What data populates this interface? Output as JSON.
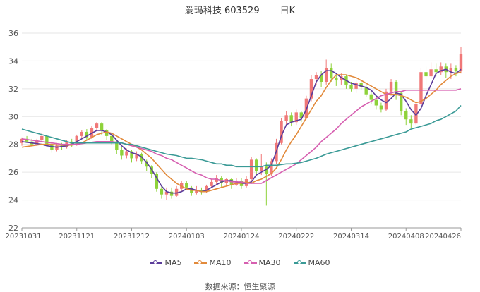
{
  "header": {
    "stock_name": "爱玛科技 603529",
    "period": "日K"
  },
  "source": "数据来源：恒生聚源",
  "chart_data": {
    "type": "candlestick",
    "title": "爱玛科技 603529",
    "period": "日K",
    "ylim": [
      22,
      36
    ],
    "y_ticks": [
      "22",
      "24",
      "26",
      "28",
      "30",
      "32",
      "34",
      "36"
    ],
    "x_ticks": [
      "20231031",
      "20231121",
      "20231212",
      "20240103",
      "20240124",
      "20240222",
      "20240314",
      "20240408",
      "20240426"
    ],
    "grid": true,
    "legend_position": "bottom",
    "colors": {
      "up": "#f07878",
      "down": "#8ed23a",
      "MA5": "#5b3c9a",
      "MA10": "#e28a3b",
      "MA30": "#d65fb0",
      "MA60": "#3a9a96"
    },
    "series": [
      {
        "name": "MA5",
        "values": [
          28.2,
          28.15,
          28.1,
          28.05,
          28.0,
          27.9,
          27.85,
          27.8,
          27.85,
          27.9,
          28.0,
          28.2,
          28.4,
          28.6,
          28.8,
          29.0,
          29.0,
          28.9,
          28.7,
          28.3,
          27.9,
          27.6,
          27.4,
          27.3,
          27.1,
          26.7,
          26.2,
          25.6,
          25.0,
          24.6,
          24.5,
          24.5,
          24.6,
          24.8,
          24.8,
          24.7,
          24.6,
          24.7,
          24.9,
          25.1,
          25.3,
          25.4,
          25.4,
          25.3,
          25.2,
          25.2,
          25.3,
          25.8,
          26.0,
          26.2,
          26.5,
          27.5,
          28.6,
          29.4,
          29.6,
          29.7,
          29.8,
          30.5,
          31.5,
          32.5,
          33.0,
          33.3,
          33.3,
          33.1,
          32.8,
          32.6,
          32.4,
          32.3,
          32.2,
          32.1,
          31.9,
          31.5,
          31.2,
          31.0,
          31.3,
          31.7,
          31.6,
          31.1,
          30.5,
          30.1,
          30.6,
          31.5,
          32.3,
          33.1,
          33.3,
          33.4,
          33.2,
          33.1,
          33.4
        ]
      },
      {
        "name": "MA10",
        "values": [
          27.8,
          27.85,
          27.9,
          27.95,
          28.0,
          28.0,
          28.0,
          27.95,
          27.95,
          27.95,
          27.95,
          28.0,
          28.1,
          28.3,
          28.5,
          28.7,
          28.8,
          28.9,
          28.8,
          28.6,
          28.4,
          28.2,
          28.0,
          27.8,
          27.6,
          27.3,
          27.0,
          26.6,
          26.2,
          25.8,
          25.5,
          25.2,
          25.0,
          24.8,
          24.7,
          24.7,
          24.6,
          24.6,
          24.7,
          24.8,
          24.9,
          25.0,
          25.1,
          25.2,
          25.2,
          25.3,
          25.2,
          25.4,
          25.5,
          25.7,
          25.9,
          26.3,
          26.9,
          27.6,
          28.2,
          28.7,
          29.3,
          29.9,
          30.5,
          31.1,
          31.5,
          32.1,
          32.6,
          33.0,
          33.0,
          33.0,
          32.9,
          32.8,
          32.6,
          32.4,
          32.2,
          32.0,
          31.8,
          31.6,
          31.6,
          31.6,
          31.5,
          31.4,
          31.2,
          31.0,
          31.1,
          31.3,
          31.6,
          31.9,
          32.3,
          32.6,
          32.9,
          33.1,
          33.2
        ]
      },
      {
        "name": "MA30",
        "values": [
          28.4,
          28.35,
          28.3,
          28.25,
          28.2,
          28.15,
          28.1,
          28.05,
          28.0,
          28.0,
          28.0,
          28.0,
          28.05,
          28.1,
          28.15,
          28.2,
          28.2,
          28.2,
          28.2,
          28.15,
          28.1,
          28.0,
          27.9,
          27.8,
          27.7,
          27.6,
          27.5,
          27.3,
          27.2,
          27.0,
          26.9,
          26.7,
          26.5,
          26.3,
          26.1,
          25.9,
          25.8,
          25.6,
          25.5,
          25.5,
          25.4,
          25.4,
          25.3,
          25.3,
          25.3,
          25.2,
          25.2,
          25.2,
          25.2,
          25.4,
          25.6,
          25.8,
          26.0,
          26.2,
          26.4,
          26.6,
          26.9,
          27.2,
          27.5,
          27.8,
          28.2,
          28.5,
          28.8,
          29.1,
          29.5,
          29.8,
          30.1,
          30.4,
          30.7,
          30.9,
          31.1,
          31.3,
          31.5,
          31.6,
          31.7,
          31.8,
          31.8,
          31.9,
          31.9,
          31.9,
          31.9,
          31.9,
          31.9,
          31.9,
          31.9,
          31.9,
          31.9,
          31.9,
          32.0
        ]
      },
      {
        "name": "MA60",
        "values": [
          29.1,
          29.0,
          28.9,
          28.8,
          28.7,
          28.6,
          28.5,
          28.4,
          28.3,
          28.2,
          28.1,
          28.1,
          28.1,
          28.1,
          28.1,
          28.1,
          28.1,
          28.1,
          28.1,
          28.1,
          28.1,
          28.0,
          28.0,
          27.9,
          27.8,
          27.7,
          27.6,
          27.5,
          27.4,
          27.3,
          27.25,
          27.2,
          27.1,
          27.0,
          27.0,
          26.95,
          26.9,
          26.8,
          26.7,
          26.6,
          26.6,
          26.5,
          26.5,
          26.4,
          26.4,
          26.4,
          26.4,
          26.4,
          26.4,
          26.5,
          26.5,
          26.5,
          26.55,
          26.6,
          26.6,
          26.65,
          26.7,
          26.8,
          26.9,
          27.0,
          27.15,
          27.3,
          27.4,
          27.5,
          27.6,
          27.7,
          27.8,
          27.9,
          28.0,
          28.1,
          28.2,
          28.3,
          28.4,
          28.5,
          28.6,
          28.7,
          28.8,
          28.9,
          29.1,
          29.2,
          29.3,
          29.4,
          29.5,
          29.7,
          29.8,
          30.0,
          30.2,
          30.4,
          30.8
        ]
      }
    ],
    "candles": [
      [
        28.1,
        28.4,
        27.9,
        28.5
      ],
      [
        28.4,
        28.2,
        28.1,
        28.6
      ],
      [
        28.2,
        28.0,
        27.9,
        28.4
      ],
      [
        28.0,
        28.3,
        27.9,
        28.4
      ],
      [
        28.3,
        28.6,
        28.2,
        28.8
      ],
      [
        28.6,
        28.0,
        27.8,
        28.7
      ],
      [
        28.0,
        27.6,
        27.4,
        28.2
      ],
      [
        27.6,
        27.9,
        27.5,
        28.1
      ],
      [
        27.9,
        27.8,
        27.6,
        28.1
      ],
      [
        27.8,
        28.2,
        27.7,
        28.3
      ],
      [
        28.2,
        28.0,
        27.8,
        28.4
      ],
      [
        28.0,
        28.6,
        27.9,
        28.7
      ],
      [
        28.6,
        28.9,
        28.4,
        29.0
      ],
      [
        28.9,
        28.5,
        28.3,
        29.1
      ],
      [
        28.5,
        29.2,
        28.4,
        29.3
      ],
      [
        29.2,
        29.5,
        29.0,
        29.6
      ],
      [
        29.5,
        29.0,
        28.7,
        29.6
      ],
      [
        29.0,
        28.6,
        28.3,
        29.1
      ],
      [
        28.6,
        28.2,
        28.0,
        28.7
      ],
      [
        28.2,
        27.6,
        27.3,
        28.3
      ],
      [
        27.6,
        27.2,
        26.9,
        27.8
      ],
      [
        27.2,
        27.5,
        27.0,
        27.7
      ],
      [
        27.5,
        27.0,
        26.7,
        27.6
      ],
      [
        27.0,
        27.3,
        26.8,
        27.5
      ],
      [
        27.3,
        26.8,
        26.6,
        27.4
      ],
      [
        26.8,
        26.4,
        26.1,
        26.9
      ],
      [
        26.4,
        25.9,
        25.6,
        26.5
      ],
      [
        25.9,
        24.8,
        24.6,
        26.0
      ],
      [
        24.8,
        24.4,
        24.1,
        25.0
      ],
      [
        24.4,
        24.6,
        24.0,
        24.9
      ],
      [
        24.6,
        24.3,
        24.1,
        24.9
      ],
      [
        24.3,
        24.8,
        24.2,
        25.0
      ],
      [
        24.8,
        25.2,
        24.6,
        25.4
      ],
      [
        25.2,
        24.9,
        24.7,
        25.4
      ],
      [
        24.9,
        24.5,
        24.3,
        25.0
      ],
      [
        24.5,
        24.7,
        24.4,
        25.0
      ],
      [
        24.7,
        24.6,
        24.4,
        24.9
      ],
      [
        24.6,
        25.0,
        24.5,
        25.1
      ],
      [
        25.0,
        25.3,
        24.9,
        25.5
      ],
      [
        25.3,
        25.6,
        25.1,
        25.8
      ],
      [
        25.6,
        25.2,
        24.9,
        25.7
      ],
      [
        25.2,
        25.5,
        25.0,
        25.6
      ],
      [
        25.5,
        25.1,
        24.8,
        25.6
      ],
      [
        25.1,
        25.4,
        25.0,
        25.6
      ],
      [
        25.4,
        25.0,
        24.8,
        25.6
      ],
      [
        25.0,
        25.5,
        24.9,
        25.7
      ],
      [
        25.5,
        26.9,
        25.2,
        27.1
      ],
      [
        26.9,
        26.1,
        25.9,
        27.0
      ],
      [
        26.1,
        26.4,
        25.8,
        27.3
      ],
      [
        26.4,
        25.9,
        23.6,
        26.7
      ],
      [
        25.9,
        26.8,
        25.7,
        27.0
      ],
      [
        26.8,
        28.1,
        26.6,
        28.4
      ],
      [
        28.1,
        29.7,
        28.0,
        29.9
      ],
      [
        29.7,
        30.1,
        29.4,
        30.4
      ],
      [
        30.1,
        29.6,
        29.3,
        30.3
      ],
      [
        29.6,
        30.3,
        29.4,
        30.5
      ],
      [
        30.3,
        29.9,
        29.6,
        30.4
      ],
      [
        29.9,
        31.3,
        29.8,
        31.5
      ],
      [
        31.3,
        32.7,
        31.1,
        33.0
      ],
      [
        32.7,
        33.0,
        32.3,
        33.2
      ],
      [
        33.0,
        32.5,
        32.1,
        33.3
      ],
      [
        32.5,
        33.5,
        32.3,
        34.1
      ],
      [
        33.5,
        32.8,
        32.5,
        33.8
      ],
      [
        32.8,
        32.6,
        32.2,
        33.1
      ],
      [
        32.6,
        32.9,
        32.3,
        33.1
      ],
      [
        32.9,
        32.3,
        32.0,
        33.0
      ],
      [
        32.3,
        32.0,
        31.8,
        32.5
      ],
      [
        32.0,
        32.4,
        31.7,
        32.6
      ],
      [
        32.4,
        32.1,
        31.9,
        32.6
      ],
      [
        32.1,
        31.6,
        31.4,
        32.3
      ],
      [
        31.6,
        31.2,
        30.9,
        31.8
      ],
      [
        31.2,
        30.8,
        30.5,
        31.4
      ],
      [
        30.8,
        30.5,
        30.3,
        31.0
      ],
      [
        30.5,
        31.8,
        30.4,
        32.0
      ],
      [
        31.8,
        32.5,
        31.5,
        32.7
      ],
      [
        32.5,
        31.7,
        31.2,
        32.6
      ],
      [
        31.7,
        30.4,
        30.1,
        31.8
      ],
      [
        30.4,
        29.8,
        29.4,
        30.6
      ],
      [
        29.8,
        29.5,
        29.2,
        30.1
      ],
      [
        29.5,
        30.9,
        29.4,
        31.1
      ],
      [
        30.9,
        33.2,
        30.7,
        33.5
      ],
      [
        33.2,
        32.9,
        32.3,
        33.6
      ],
      [
        32.9,
        33.4,
        32.7,
        33.9
      ],
      [
        33.4,
        33.2,
        32.9,
        33.8
      ],
      [
        33.2,
        33.6,
        33.0,
        33.9
      ],
      [
        33.6,
        33.2,
        32.8,
        33.8
      ],
      [
        33.2,
        33.5,
        32.7,
        33.8
      ],
      [
        33.5,
        33.3,
        32.9,
        33.7
      ],
      [
        33.3,
        34.5,
        33.1,
        35.0
      ]
    ]
  }
}
